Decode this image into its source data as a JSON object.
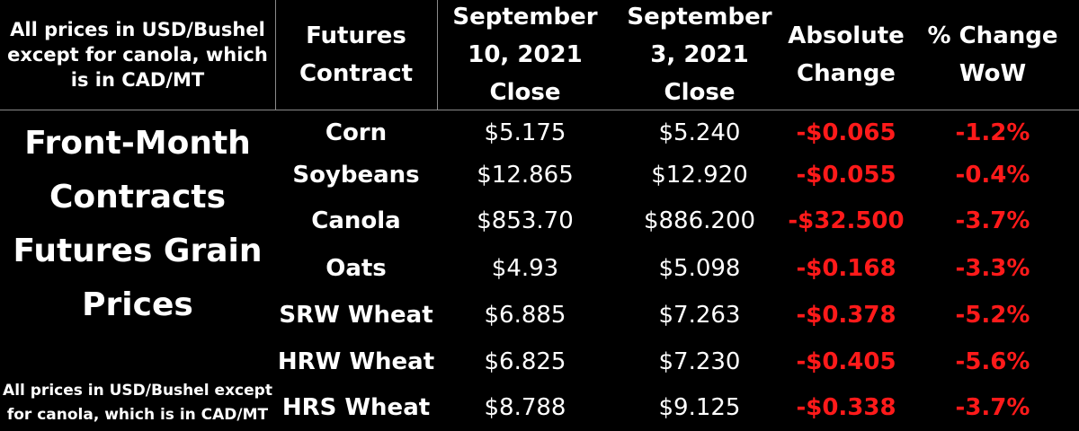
{
  "header": {
    "note": "All prices in USD/Bushel\nexcept for canola, which\nis in CAD/MT",
    "contract": "Futures\nContract",
    "sep10": "September\n10, 2021\nClose",
    "sep3": "September\n3, 2021\nClose",
    "abs": "Absolute\nChange",
    "pct": "% Change\nWoW"
  },
  "side": {
    "title": "Front-Month\nContracts\nFutures Grain\nPrices",
    "note": "All prices in USD/Bushel except\nfor canola, which is in CAD/MT"
  },
  "colors": {
    "background": "#000000",
    "text": "#ffffff",
    "negative": "#ff1a1a",
    "rule": "#8a8a8a"
  },
  "rows": [
    {
      "name": "Corn",
      "sep10": "$5.175",
      "sep3": "$5.240",
      "abs": "-$0.065",
      "pct": "-1.2%"
    },
    {
      "name": "Soybeans",
      "sep10": "$12.865",
      "sep3": "$12.920",
      "abs": "-$0.055",
      "pct": "-0.4%"
    },
    {
      "name": "Canola",
      "sep10": "$853.70",
      "sep3": "$886.200",
      "abs": "-$32.500",
      "pct": "-3.7%"
    },
    {
      "name": "Oats",
      "sep10": "$4.93",
      "sep3": "$5.098",
      "abs": "-$0.168",
      "pct": "-3.3%"
    },
    {
      "name": "SRW Wheat",
      "sep10": "$6.885",
      "sep3": "$7.263",
      "abs": "-$0.378",
      "pct": "-5.2%"
    },
    {
      "name": "HRW Wheat",
      "sep10": "$6.825",
      "sep3": "$7.230",
      "abs": "-$0.405",
      "pct": "-5.6%"
    },
    {
      "name": "HRS Wheat",
      "sep10": "$8.788",
      "sep3": "$9.125",
      "abs": "-$0.338",
      "pct": "-3.7%"
    }
  ]
}
